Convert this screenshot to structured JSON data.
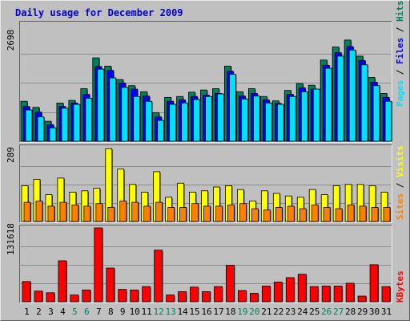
{
  "title": "Daily usage for December 2009",
  "colors": {
    "background": "#ffffff",
    "panel_bg": "#c0c0c0",
    "frame_light": "#e8e8e8",
    "frame_dark": "#606060",
    "title_text": "#0000c8",
    "hits": "#00805c",
    "files": "#0000ff",
    "pages": "#00e0ff",
    "visits": "#ffff00",
    "sites": "#ff8000",
    "kbytes": "#ff0000",
    "weekend_day": "#00805c",
    "weekday_day": "#000000",
    "separator": "#000000"
  },
  "chart_data": [
    {
      "type": "bar",
      "panel": "hits-files-pages",
      "y_max_label": "2698",
      "ylim": [
        0,
        2698
      ],
      "legend": [
        "Pages",
        "Files",
        "Hits"
      ],
      "categories": [
        "1",
        "2",
        "3",
        "4",
        "5",
        "6",
        "7",
        "8",
        "9",
        "10",
        "11",
        "12",
        "13",
        "14",
        "15",
        "16",
        "17",
        "18",
        "19",
        "20",
        "21",
        "22",
        "23",
        "24",
        "25",
        "26",
        "27",
        "28",
        "29",
        "30",
        "31"
      ],
      "series": [
        {
          "name": "Hits",
          "color_key": "hits",
          "values": [
            920,
            780,
            460,
            880,
            940,
            1210,
            1920,
            1730,
            1420,
            1280,
            1140,
            660,
            1010,
            1030,
            1130,
            1180,
            1210,
            1730,
            1140,
            1210,
            1030,
            930,
            1170,
            1330,
            1290,
            1870,
            2170,
            2330,
            1960,
            1470,
            1100
          ]
        },
        {
          "name": "Files",
          "color_key": "files",
          "values": [
            800,
            670,
            380,
            800,
            880,
            1080,
            1720,
            1630,
            1340,
            1200,
            1040,
            560,
            920,
            950,
            1030,
            1060,
            1100,
            1610,
            1040,
            1100,
            950,
            870,
            1080,
            1230,
            1200,
            1750,
            2040,
            2180,
            1860,
            1360,
            1010
          ]
        },
        {
          "name": "Pages",
          "color_key": "pages",
          "values": [
            720,
            560,
            310,
            760,
            850,
            990,
            1660,
            1460,
            1240,
            1030,
            920,
            480,
            850,
            880,
            960,
            1030,
            1090,
            1540,
            970,
            1040,
            880,
            850,
            1030,
            1140,
            1200,
            1680,
            1960,
            2100,
            1760,
            1280,
            920
          ]
        }
      ]
    },
    {
      "type": "bar",
      "panel": "visits-sites",
      "y_max_label": "289",
      "ylim": [
        0,
        289
      ],
      "legend": [
        "Sites",
        "Visits"
      ],
      "categories": [
        "1",
        "2",
        "3",
        "4",
        "5",
        "6",
        "7",
        "8",
        "9",
        "10",
        "11",
        "12",
        "13",
        "14",
        "15",
        "16",
        "17",
        "18",
        "19",
        "20",
        "21",
        "22",
        "23",
        "24",
        "25",
        "26",
        "27",
        "28",
        "29",
        "30",
        "31"
      ],
      "series": [
        {
          "name": "Visits",
          "color_key": "visits",
          "values": [
            140,
            165,
            105,
            170,
            115,
            120,
            130,
            285,
            205,
            145,
            115,
            195,
            95,
            150,
            115,
            120,
            135,
            140,
            125,
            80,
            120,
            110,
            100,
            95,
            125,
            105,
            140,
            145,
            145,
            140,
            115
          ]
        },
        {
          "name": "Sites",
          "color_key": "sites",
          "values": [
            75,
            80,
            60,
            75,
            65,
            60,
            70,
            55,
            80,
            75,
            60,
            75,
            55,
            55,
            70,
            60,
            60,
            65,
            70,
            50,
            45,
            55,
            60,
            50,
            65,
            55,
            50,
            65,
            60,
            55,
            55
          ]
        }
      ]
    },
    {
      "type": "bar",
      "panel": "kbytes",
      "y_max_label": "131618",
      "ylim": [
        0,
        131618
      ],
      "legend": [
        "KBytes"
      ],
      "categories": [
        "1",
        "2",
        "3",
        "4",
        "5",
        "6",
        "7",
        "8",
        "9",
        "10",
        "11",
        "12",
        "13",
        "14",
        "15",
        "16",
        "17",
        "18",
        "19",
        "20",
        "21",
        "22",
        "23",
        "24",
        "25",
        "26",
        "27",
        "28",
        "29",
        "30",
        "31"
      ],
      "series": [
        {
          "name": "KBytes",
          "color_key": "kbytes",
          "values": [
            36000,
            19000,
            16000,
            73000,
            12000,
            21000,
            131618,
            60000,
            22000,
            21000,
            27000,
            92000,
            12000,
            18000,
            26000,
            18000,
            27000,
            65000,
            20000,
            15000,
            28000,
            35000,
            43000,
            49000,
            27000,
            28000,
            28000,
            33000,
            10000,
            66000,
            27000
          ]
        }
      ]
    }
  ]
}
